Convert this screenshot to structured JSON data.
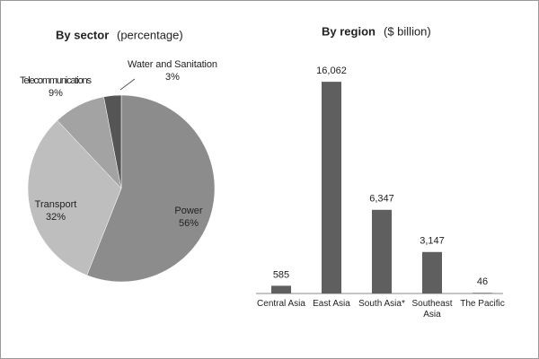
{
  "chart_data": [
    {
      "type": "pie",
      "title": "By sector",
      "subtitle": "(percentage)",
      "categories": [
        "Power",
        "Transport",
        "Telecommunications",
        "Water and Sanitation"
      ],
      "values": [
        56,
        32,
        9,
        3
      ],
      "value_labels": [
        "56%",
        "32%",
        "9%",
        "3%"
      ],
      "colors": [
        "#8c8c8c",
        "#bebebe",
        "#a3a3a3",
        "#555555"
      ]
    },
    {
      "type": "bar",
      "title": "By region",
      "subtitle": "($ billion)",
      "categories": [
        "Central Asia",
        "East Asia",
        "South Asia*",
        "Southeast Asia",
        "The Pacific"
      ],
      "values": [
        585,
        16062,
        6347,
        3147,
        46
      ],
      "value_labels": [
        "585",
        "16,062",
        "6,347",
        "3,147",
        "46"
      ],
      "color": "#5f5f5f",
      "ylim": [
        0,
        17500
      ]
    }
  ]
}
